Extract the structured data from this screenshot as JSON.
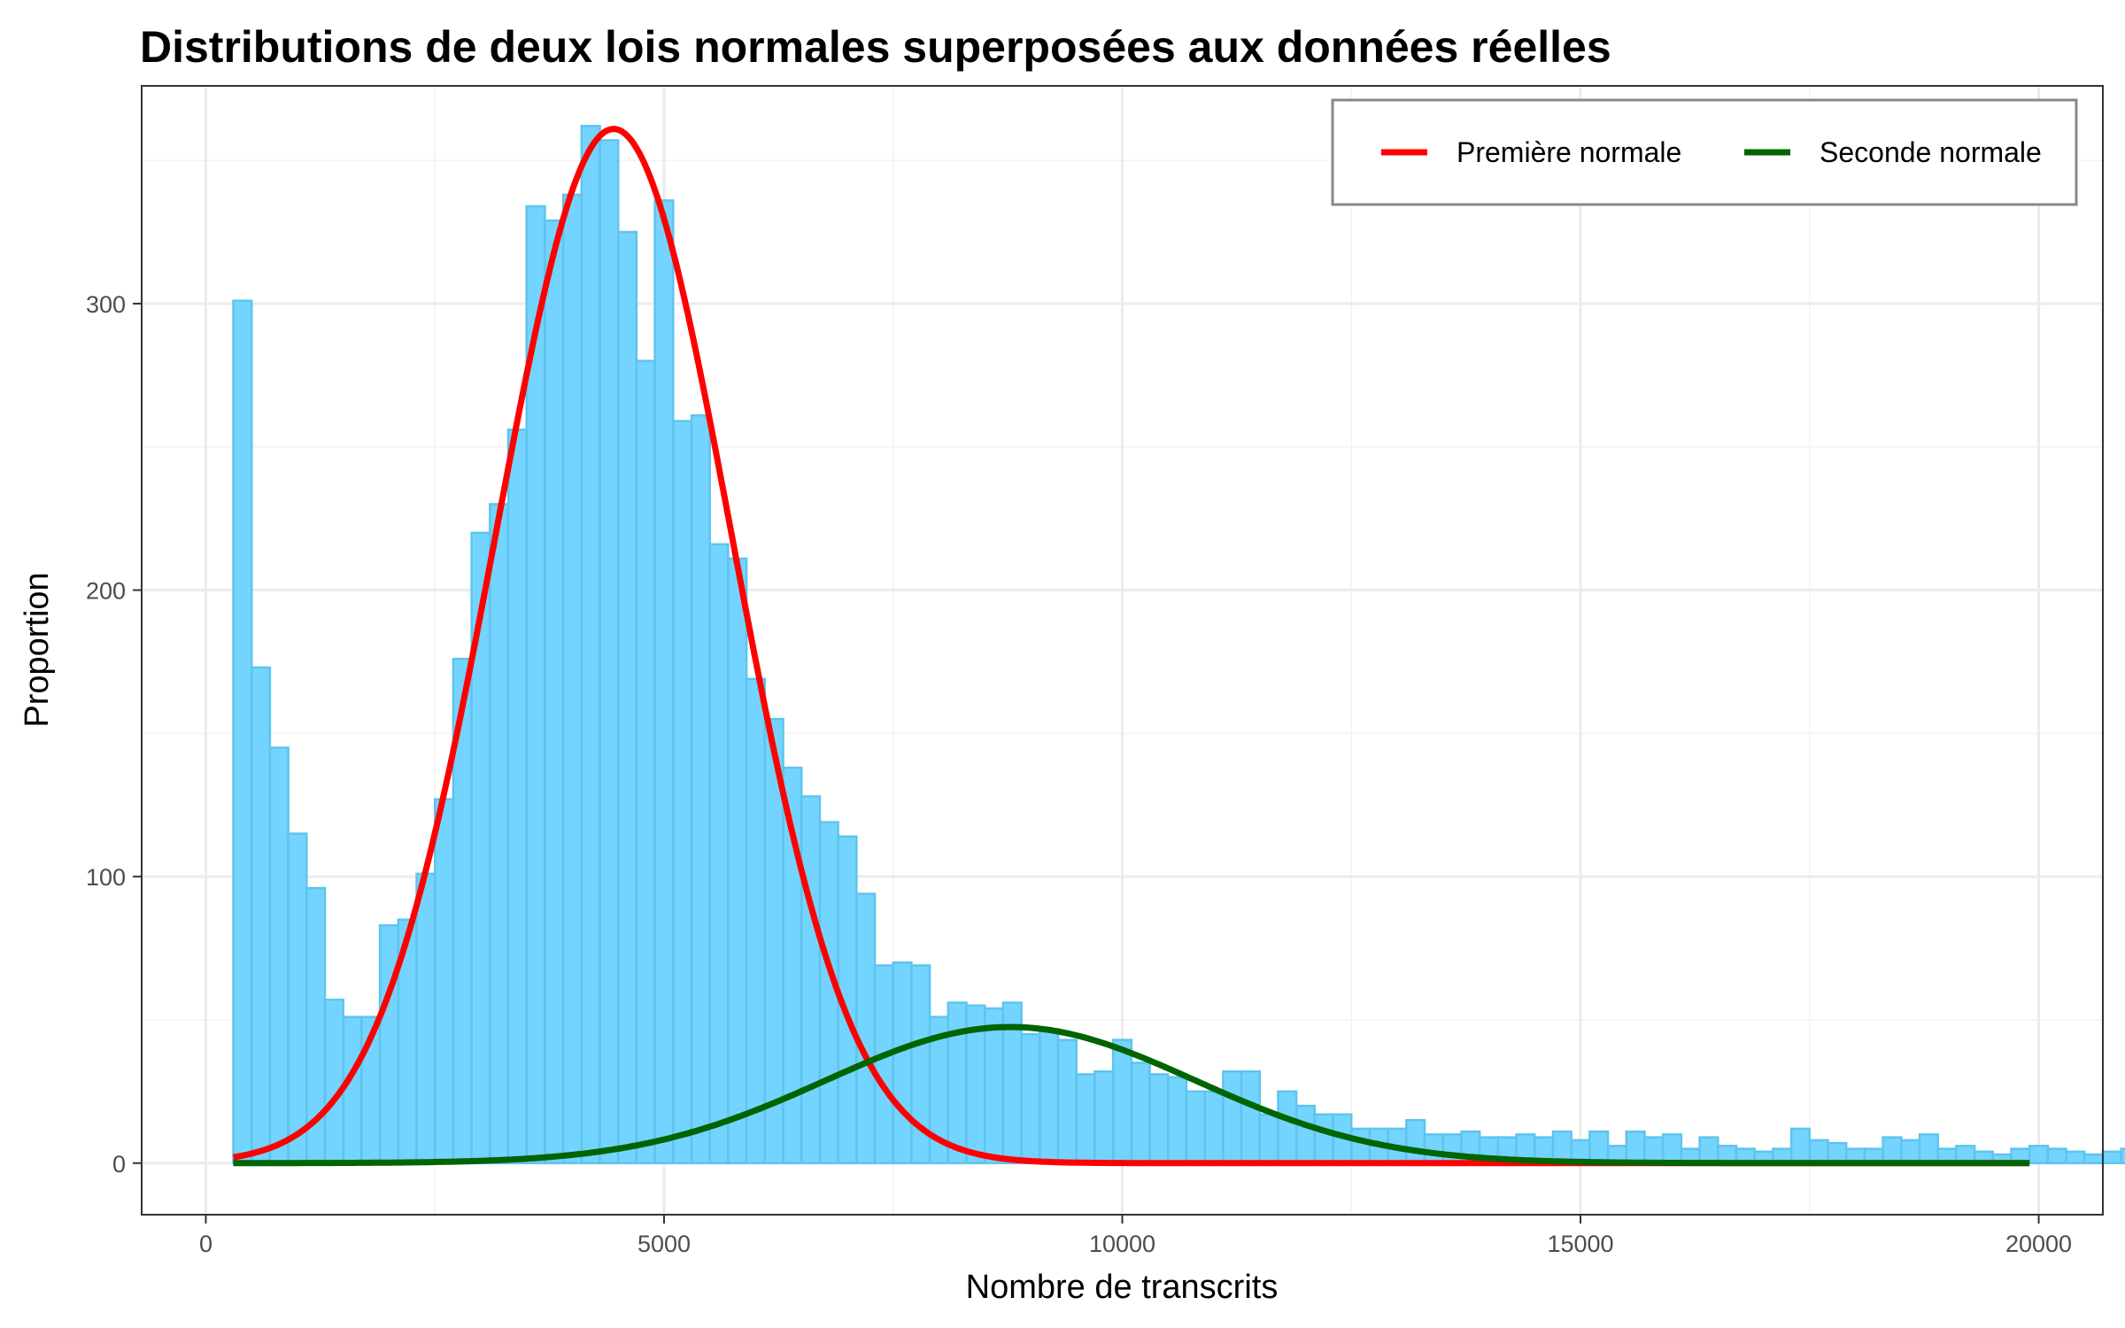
{
  "chart_data": {
    "type": "histogram",
    "title": "Distributions de deux lois normales superposées aux données réelles",
    "xlabel": "Nombre de transcrits",
    "ylabel": "Proportion",
    "xlim": [
      -700,
      20700
    ],
    "ylim": [
      -18,
      376
    ],
    "x_ticks": [
      0,
      5000,
      10000,
      15000,
      20000
    ],
    "y_ticks": [
      0,
      100,
      200,
      300
    ],
    "grid": true,
    "legend_position": "top-right",
    "bar_color": "#73D4FF",
    "bar_edge_color": "#5EC4EE",
    "histogram": {
      "bin_start": 300,
      "bin_width": 200,
      "counts": [
        301,
        173,
        145,
        115,
        96,
        57,
        51,
        51,
        83,
        85,
        101,
        127,
        176,
        220,
        230,
        256,
        334,
        329,
        338,
        362,
        357,
        325,
        280,
        336,
        259,
        261,
        216,
        211,
        169,
        155,
        138,
        128,
        119,
        114,
        94,
        69,
        70,
        69,
        51,
        56,
        55,
        54,
        56,
        45,
        46,
        43,
        31,
        32,
        43,
        35,
        31,
        30,
        25,
        25,
        32,
        32,
        17,
        25,
        20,
        17,
        17,
        12,
        12,
        12,
        15,
        10,
        10,
        11,
        9,
        9,
        10,
        9,
        11,
        8,
        11,
        6,
        11,
        9,
        10,
        5,
        9,
        6,
        5,
        4,
        5,
        12,
        8,
        7,
        5,
        5,
        9,
        8,
        10,
        5,
        6,
        4,
        3,
        5,
        6,
        5,
        4,
        3,
        4,
        5,
        6,
        8,
        2
      ]
    },
    "series": [
      {
        "name": "Première normale",
        "color": "#FF0000",
        "mean": 4450,
        "sd": 1290,
        "peak": 361
      },
      {
        "name": "Seconde normale",
        "color": "#006400",
        "mean": 8780,
        "sd": 2020,
        "peak": 47.5
      }
    ],
    "curve_range": [
      300,
      19900
    ]
  }
}
